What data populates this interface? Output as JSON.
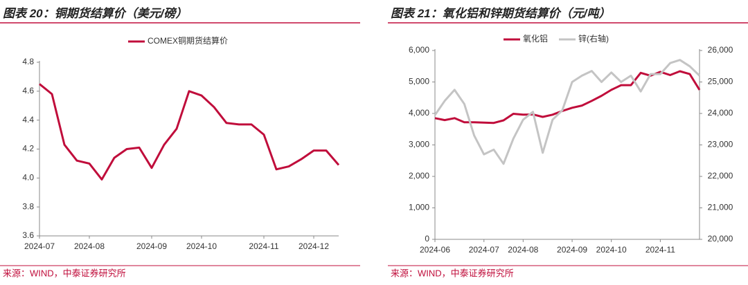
{
  "chart_data": [
    {
      "type": "line",
      "title": "图表 20：铜期货结算价（美元/磅）",
      "source": "来源：WIND，中泰证券研究所",
      "categories": [
        "2024-07",
        null,
        null,
        null,
        "2024-08",
        null,
        null,
        null,
        null,
        "2024-09",
        null,
        null,
        null,
        "2024-10",
        null,
        null,
        null,
        null,
        "2024-11",
        null,
        null,
        null,
        "2024-12",
        null,
        null
      ],
      "series": [
        {
          "name": "COMEX铜期货结算价",
          "color": "#c00d3b",
          "values": [
            4.65,
            4.58,
            4.23,
            4.12,
            4.1,
            3.99,
            4.14,
            4.2,
            4.21,
            4.07,
            4.23,
            4.34,
            4.6,
            4.57,
            4.49,
            4.38,
            4.37,
            4.37,
            4.3,
            4.06,
            4.08,
            4.13,
            4.19,
            4.19,
            4.09
          ]
        }
      ],
      "ylim": [
        3.6,
        4.8
      ],
      "yticks": [
        3.6,
        3.8,
        {
          "value": 4,
          "label": "4.0"
        },
        4.2,
        4.4,
        4.6,
        4.8
      ],
      "grid": false,
      "legend": "top"
    },
    {
      "type": "line",
      "title": "图表 21：氧化铝和锌期货结算价（元/吨）",
      "source": "来源：WIND，中泰证券研究所",
      "categories": [
        "2024-06",
        null,
        null,
        null,
        null,
        "2024-07",
        null,
        null,
        null,
        "2024-08",
        null,
        null,
        null,
        null,
        "2024-09",
        null,
        null,
        null,
        "2024-10",
        null,
        null,
        null,
        null,
        "2024-11",
        null,
        null,
        null,
        null
      ],
      "series": [
        {
          "name": "氧化铝",
          "color": "#c00d3b",
          "values": [
            3850,
            3790,
            3850,
            3720,
            3720,
            3710,
            3700,
            3780,
            3990,
            3960,
            3970,
            3890,
            3960,
            4080,
            4180,
            4250,
            4400,
            4560,
            4750,
            4900,
            4900,
            5290,
            5200,
            5320,
            5220,
            5340,
            5250,
            4750
          ]
        },
        {
          "name": "锌(右轴)",
          "color": "#c4c4c4",
          "axis": "y2",
          "values": [
            23950,
            24400,
            24750,
            24300,
            23300,
            22700,
            22850,
            22400,
            23200,
            23800,
            24050,
            22750,
            23800,
            24100,
            25000,
            25200,
            25350,
            25000,
            25300,
            25000,
            25200,
            24700,
            25250,
            25250,
            25600,
            25700,
            25500,
            25200
          ]
        }
      ],
      "ylim": [
        0,
        6000
      ],
      "yticks": [
        0,
        {
          "value": 1000,
          "label": "1,000"
        },
        {
          "value": 2000,
          "label": "2,000"
        },
        {
          "value": 3000,
          "label": "3,000"
        },
        {
          "value": 4000,
          "label": "4,000"
        },
        {
          "value": 5000,
          "label": "5,000"
        },
        {
          "value": 6000,
          "label": "6,000"
        }
      ],
      "y2lim": [
        20000,
        26000
      ],
      "y2ticks": [
        {
          "value": 20000,
          "label": "20,000"
        },
        {
          "value": 21000,
          "label": "21,000"
        },
        {
          "value": 22000,
          "label": "22,000"
        },
        {
          "value": 23000,
          "label": "23,000"
        },
        {
          "value": 24000,
          "label": "24,000"
        },
        {
          "value": 25000,
          "label": "25,000"
        },
        {
          "value": 26000,
          "label": "26,000"
        }
      ],
      "grid": false,
      "legend": "top"
    }
  ]
}
